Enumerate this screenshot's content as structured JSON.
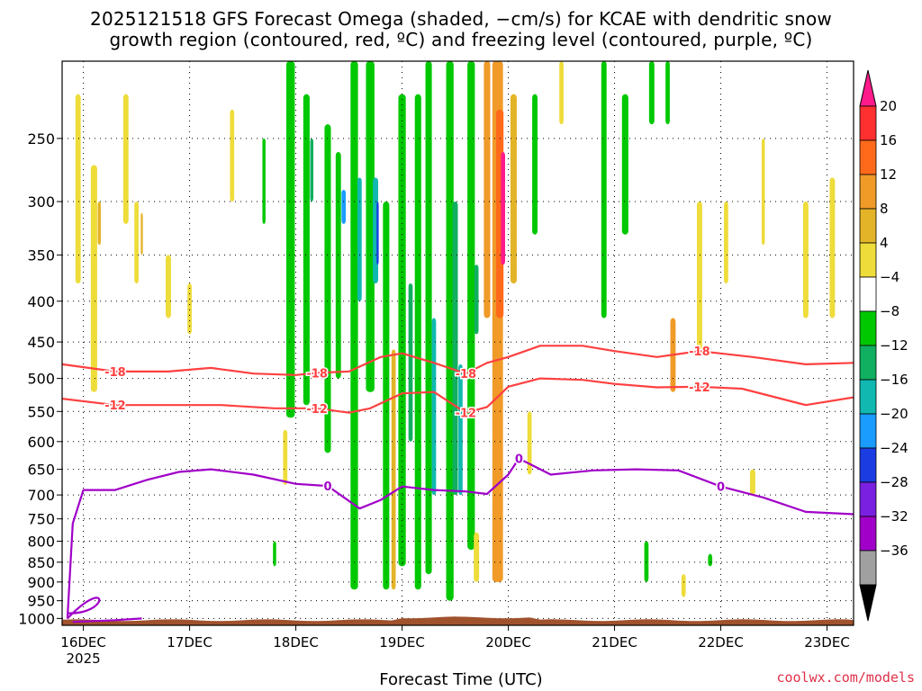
{
  "title_line1": "2025121518 GFS Forecast Omega (shaded, −cm/s) for KCAE with dendritic snow",
  "title_line2": "growth region (contoured, red, ºC) and freezing level (contoured, purple, ºC)",
  "credit": "coolwx.com/models",
  "chart_data": {
    "type": "heatmap",
    "title": "2025121518 GFS Forecast Omega (shaded, −cm/s) for KCAE with dendritic snow growth region (contoured, red, ºC) and freezing level (contoured, purple, ºC)",
    "xlabel": "Forecast Time (UTC)",
    "ylabel": "",
    "y_scale": "log-pressure (hPa), inverted",
    "ylim": [
      1020,
      200
    ],
    "y_ticks": [
      250,
      300,
      350,
      400,
      450,
      500,
      550,
      600,
      650,
      700,
      750,
      800,
      850,
      900,
      950,
      1000
    ],
    "x_ticks": [
      {
        "label": "16DEC",
        "sub": "2025",
        "day": 16
      },
      {
        "label": "17DEC",
        "sub": "",
        "day": 17
      },
      {
        "label": "18DEC",
        "sub": "",
        "day": 18
      },
      {
        "label": "19DEC",
        "sub": "",
        "day": 19
      },
      {
        "label": "20DEC",
        "sub": "",
        "day": 20
      },
      {
        "label": "21DEC",
        "sub": "",
        "day": 21
      },
      {
        "label": "22DEC",
        "sub": "",
        "day": 22
      },
      {
        "label": "23DEC",
        "sub": "",
        "day": 23
      }
    ],
    "xlim_day": [
      15.8,
      23.25
    ],
    "grid": true,
    "colorbar": {
      "labels": [
        "20",
        "16",
        "12",
        "8",
        "4",
        "−4",
        "−8",
        "−12",
        "−16",
        "−20",
        "−24",
        "−28",
        "−32",
        "−36"
      ],
      "colors": [
        "#ff1a8c",
        "#ff3030",
        "#ff6a1a",
        "#f09a28",
        "#e4b428",
        "#eedc3a",
        "#ffffff",
        "#00c800",
        "#10b060",
        "#10b8b0",
        "#1a9cff",
        "#1a3ce0",
        "#7a20e0",
        "#a000c8",
        "#a0a0a0",
        "#000000"
      ]
    },
    "contours": {
      "dendritic": [
        {
          "label": "-18",
          "points": [
            [
              15.8,
              480
            ],
            [
              16.3,
              490
            ],
            [
              16.8,
              490
            ],
            [
              17.2,
              485
            ],
            [
              17.6,
              493
            ],
            [
              18.0,
              495
            ],
            [
              18.2,
              492
            ],
            [
              18.5,
              490
            ],
            [
              18.8,
              470
            ],
            [
              19.0,
              465
            ],
            [
              19.3,
              478
            ],
            [
              19.6,
              493
            ],
            [
              19.8,
              478
            ],
            [
              20.0,
              470
            ],
            [
              20.3,
              455
            ],
            [
              20.7,
              455
            ],
            [
              21.0,
              462
            ],
            [
              21.4,
              470
            ],
            [
              21.8,
              462
            ],
            [
              22.3,
              470
            ],
            [
              22.8,
              480
            ],
            [
              23.25,
              478
            ]
          ]
        },
        {
          "label": "-12",
          "points": [
            [
              15.8,
              530
            ],
            [
              16.3,
              540
            ],
            [
              16.8,
              540
            ],
            [
              17.3,
              540
            ],
            [
              17.8,
              545
            ],
            [
              18.2,
              545
            ],
            [
              18.5,
              552
            ],
            [
              18.7,
              545
            ],
            [
              19.0,
              522
            ],
            [
              19.3,
              520
            ],
            [
              19.6,
              552
            ],
            [
              19.8,
              543
            ],
            [
              20.0,
              512
            ],
            [
              20.3,
              500
            ],
            [
              20.7,
              502
            ],
            [
              21.0,
              508
            ],
            [
              21.4,
              513
            ],
            [
              21.8,
              512
            ],
            [
              22.2,
              515
            ],
            [
              22.8,
              540
            ],
            [
              23.25,
              528
            ]
          ]
        }
      ],
      "freezing": [
        {
          "label": "0",
          "points": [
            [
              15.85,
              1000
            ],
            [
              15.9,
              760
            ],
            [
              16.0,
              690
            ],
            [
              16.3,
              690
            ],
            [
              16.6,
              670
            ],
            [
              16.9,
              655
            ],
            [
              17.2,
              650
            ],
            [
              17.6,
              660
            ],
            [
              18.0,
              678
            ],
            [
              18.3,
              682
            ],
            [
              18.6,
              728
            ],
            [
              18.8,
              710
            ],
            [
              19.0,
              683
            ],
            [
              19.3,
              690
            ],
            [
              19.6,
              693
            ],
            [
              19.8,
              698
            ],
            [
              20.0,
              660
            ],
            [
              20.1,
              630
            ],
            [
              20.4,
              660
            ],
            [
              20.8,
              652
            ],
            [
              21.2,
              650
            ],
            [
              21.6,
              652
            ],
            [
              22.0,
              683
            ],
            [
              22.4,
              705
            ],
            [
              22.8,
              735
            ],
            [
              23.25,
              740
            ]
          ]
        }
      ]
    }
  }
}
